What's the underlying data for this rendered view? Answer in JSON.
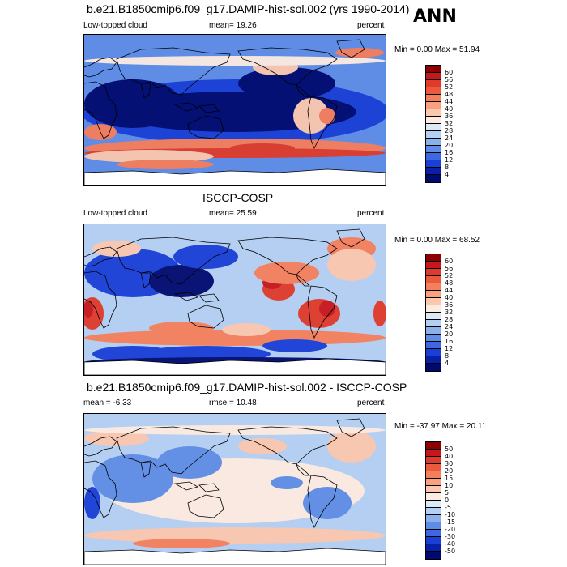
{
  "season": "ANN",
  "panels": [
    {
      "title": "b.e21.B1850cmip6.f09_g17.DAMIP-hist-sol.002 (yrs 1990-2014)",
      "left_label": "Low-topped cloud",
      "stat_label": "mean=  19.26",
      "units": "percent",
      "minmax": "Min =   0.00 Max =  51.94",
      "colorbar": {
        "labels": [
          "60",
          "56",
          "52",
          "48",
          "44",
          "40",
          "36",
          "32",
          "28",
          "24",
          "20",
          "16",
          "12",
          "8",
          "4"
        ],
        "colors": [
          "#8b0000",
          "#c8161d",
          "#e03a2a",
          "#ec5a3e",
          "#f57e5b",
          "#f8a07f",
          "#fbc7ae",
          "#fdebe0",
          "#dbe8f8",
          "#b4cff2",
          "#8bb1ec",
          "#5f8de5",
          "#3c69e2",
          "#1a3fd6",
          "#0a1fa8",
          "#000a6e"
        ]
      },
      "map_style": "model"
    },
    {
      "title": "ISCCP-COSP",
      "left_label": "Low-topped cloud",
      "stat_label": "mean=  25.59",
      "units": "percent",
      "minmax": "Min =   0.00 Max =  68.52",
      "colorbar": {
        "labels": [
          "60",
          "56",
          "52",
          "48",
          "44",
          "40",
          "36",
          "32",
          "28",
          "24",
          "20",
          "16",
          "12",
          "8",
          "4"
        ],
        "colors": [
          "#8b0000",
          "#c8161d",
          "#e03a2a",
          "#ec5a3e",
          "#f57e5b",
          "#f8a07f",
          "#fbc7ae",
          "#fdebe0",
          "#dbe8f8",
          "#b4cff2",
          "#8bb1ec",
          "#5f8de5",
          "#3c69e2",
          "#1a3fd6",
          "#0a1fa8",
          "#000a6e"
        ]
      },
      "map_style": "obs"
    },
    {
      "title": "b.e21.B1850cmip6.f09_g17.DAMIP-hist-sol.002 - ISCCP-COSP",
      "left_label": "mean =  -6.33",
      "stat_label": "rmse =  10.48",
      "units": "percent",
      "minmax": "Min = -37.97 Max =  20.11",
      "colorbar": {
        "labels": [
          "50",
          "40",
          "30",
          "20",
          "15",
          "10",
          "5",
          "0",
          "-5",
          "-10",
          "-15",
          "-20",
          "-30",
          "-40",
          "-50"
        ],
        "colors": [
          "#8b0000",
          "#c8161d",
          "#e03a2a",
          "#ec5a3e",
          "#f57e5b",
          "#f8a07f",
          "#fbc7ae",
          "#fdebe0",
          "#dbe8f8",
          "#b4cff2",
          "#8bb1ec",
          "#5f8de5",
          "#3c69e2",
          "#1a3fd6",
          "#0a1fa8",
          "#000a6e"
        ]
      },
      "map_style": "diff"
    }
  ]
}
